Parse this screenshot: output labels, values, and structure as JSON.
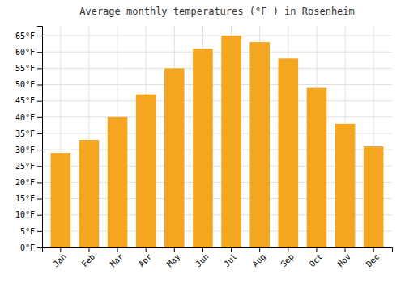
{
  "chart_data": {
    "type": "bar",
    "title": "Average monthly temperatures (°F ) in Rosenheim",
    "categories": [
      "Jan",
      "Feb",
      "Mar",
      "Apr",
      "May",
      "Jun",
      "Jul",
      "Aug",
      "Sep",
      "Oct",
      "Nov",
      "Dec"
    ],
    "values": [
      29,
      33,
      40,
      47,
      55,
      61,
      65,
      63,
      58,
      49,
      38,
      31
    ],
    "color": "#F5A621",
    "ylim": [
      0,
      68
    ],
    "yticks": [
      {
        "value": 0,
        "label": "0°F"
      },
      {
        "value": 5,
        "label": "5°F"
      },
      {
        "value": 10,
        "label": "10°F"
      },
      {
        "value": 15,
        "label": "15°F"
      },
      {
        "value": 20,
        "label": "20°F"
      },
      {
        "value": 25,
        "label": "25°F"
      },
      {
        "value": 30,
        "label": "30°F"
      },
      {
        "value": 35,
        "label": "35°F"
      },
      {
        "value": 40,
        "label": "40°F"
      },
      {
        "value": 45,
        "label": "45°F"
      },
      {
        "value": 50,
        "label": "50°F"
      },
      {
        "value": 55,
        "label": "55°F"
      },
      {
        "value": 60,
        "label": "60°F"
      },
      {
        "value": 65,
        "label": "65°F"
      }
    ],
    "grid": true
  }
}
